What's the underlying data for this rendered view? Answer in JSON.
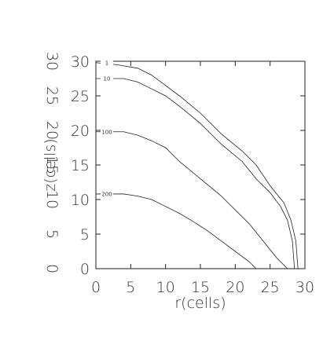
{
  "chart_data": {
    "type": "contour",
    "xlabel": "r(cells)",
    "ylabel": "z(cells)",
    "xlim": [
      0,
      30
    ],
    "ylim": [
      0,
      30
    ],
    "xticks": [
      0,
      5,
      10,
      15,
      20,
      25,
      30
    ],
    "yticks": [
      0,
      5,
      10,
      15,
      20,
      25,
      30
    ],
    "color": "#222",
    "series": [
      {
        "name": "1",
        "x": [
          0,
          3,
          6,
          8,
          10,
          12,
          15,
          18,
          21,
          23,
          25,
          27,
          28,
          28.7,
          29
        ],
        "y": [
          29.8,
          29.5,
          29,
          28,
          26.5,
          25,
          22.5,
          19.5,
          17,
          15,
          12,
          9.5,
          7,
          4,
          0
        ]
      },
      {
        "name": "10",
        "x": [
          0,
          4,
          6,
          8,
          10,
          12,
          15,
          18,
          21,
          23,
          25,
          26.5,
          27.5,
          28.2,
          28.5
        ],
        "y": [
          27.5,
          27.5,
          27,
          26,
          25,
          23.5,
          21,
          18,
          15.5,
          13,
          11,
          9,
          7,
          4,
          0
        ]
      },
      {
        "name": "100",
        "x": [
          0,
          4,
          6,
          8,
          10,
          12,
          15,
          18,
          20,
          22,
          24,
          26,
          27.5
        ],
        "y": [
          19.8,
          19.8,
          19.3,
          18.5,
          17.5,
          15.5,
          13,
          10.5,
          8.5,
          6.5,
          4,
          1.5,
          0
        ]
      },
      {
        "name": "200",
        "x": [
          0,
          4,
          6,
          8,
          10,
          12,
          14,
          16,
          18,
          20,
          22,
          23
        ],
        "y": [
          10.8,
          10.8,
          10.5,
          10,
          9,
          8,
          6.8,
          5.5,
          4,
          2.5,
          1,
          0
        ]
      }
    ]
  }
}
